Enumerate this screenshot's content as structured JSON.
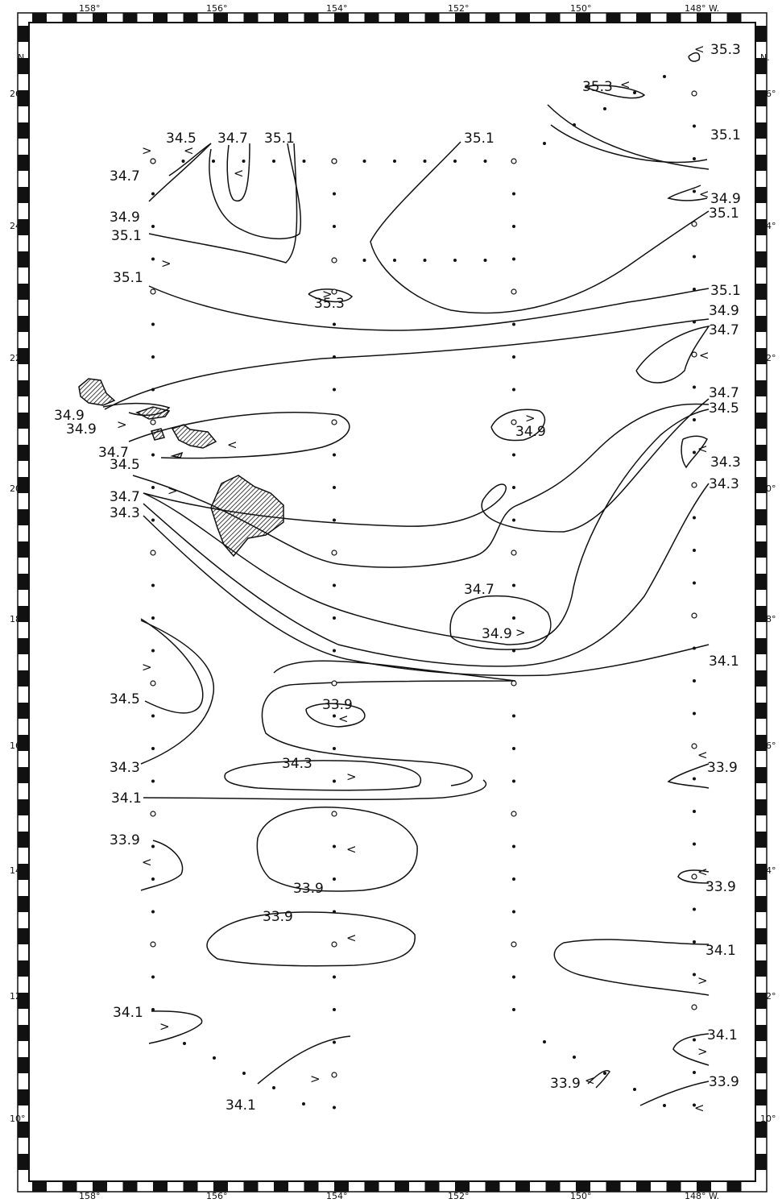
{
  "axes": {
    "longitude_ticks": [
      "158°",
      "156°",
      "154°",
      "152°",
      "150°",
      "148° W."
    ],
    "latitude_ticks": [
      "26°",
      "24°",
      "22°",
      "20°",
      "18°",
      "16°",
      "14°",
      "12°",
      "10°"
    ],
    "north_label": "N."
  },
  "isohaline_labels": [
    "34.5",
    "34.7",
    "35.1",
    "35.1",
    "35.3",
    "34.7",
    "34.9",
    "35.1",
    "35.3",
    "35.1",
    "34.9",
    "35.1",
    "35.1",
    "35.3",
    "35.1",
    "34.9",
    "34.7",
    "34.9",
    "34.9",
    "34.7",
    "34.9",
    "34.7",
    "34.5",
    "34.5",
    "34.3",
    "34.7",
    "34.3",
    "34.3",
    "34.7",
    "34.9",
    "34.1",
    "34.5",
    "33.9",
    "34.3",
    "34.3",
    "34.1",
    "33.9",
    "33.9",
    "33.9",
    "33.9",
    "33.9",
    "34.1",
    "34.1",
    "34.1",
    "34.1",
    "33.9",
    "33.9"
  ],
  "colors": {
    "ink": "#111111",
    "paper": "#ffffff",
    "land_hatch": "#111111"
  }
}
